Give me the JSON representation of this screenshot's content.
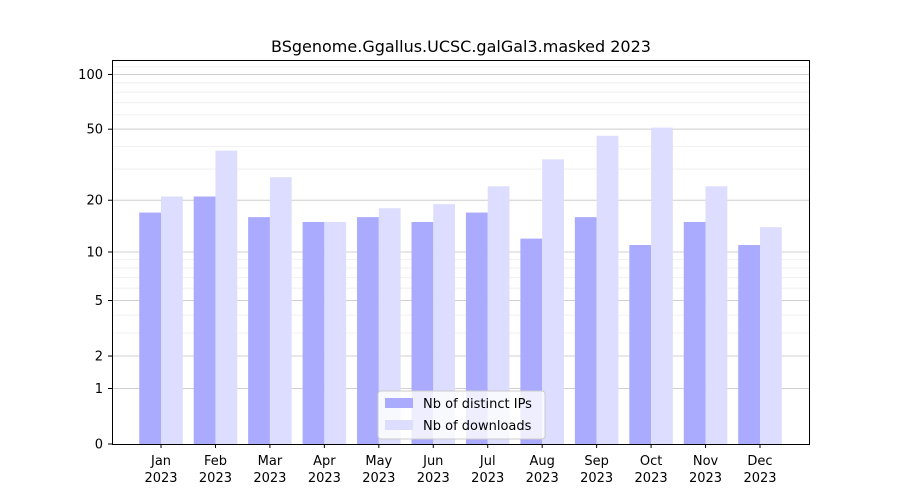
{
  "chart_data": {
    "type": "bar",
    "title": "BSgenome.Ggallus.UCSC.galGal3.masked 2023",
    "xlabel": "",
    "ylabel": "",
    "yscale": "log(1+y)",
    "ylim": [
      0,
      120
    ],
    "grid": "y-major and minor, light",
    "categories": [
      {
        "month": "Jan",
        "year": "2023"
      },
      {
        "month": "Feb",
        "year": "2023"
      },
      {
        "month": "Mar",
        "year": "2023"
      },
      {
        "month": "Apr",
        "year": "2023"
      },
      {
        "month": "May",
        "year": "2023"
      },
      {
        "month": "Jun",
        "year": "2023"
      },
      {
        "month": "Jul",
        "year": "2023"
      },
      {
        "month": "Aug",
        "year": "2023"
      },
      {
        "month": "Sep",
        "year": "2023"
      },
      {
        "month": "Oct",
        "year": "2023"
      },
      {
        "month": "Nov",
        "year": "2023"
      },
      {
        "month": "Dec",
        "year": "2023"
      }
    ],
    "series": [
      {
        "name": "Nb of distinct IPs",
        "color": "#aaaaff",
        "values": [
          17,
          21,
          16,
          15,
          16,
          15,
          17,
          12,
          16,
          11,
          15,
          11
        ]
      },
      {
        "name": "Nb of downloads",
        "color": "#ddddff",
        "values": [
          21,
          38,
          27,
          15,
          18,
          19,
          24,
          34,
          46,
          51,
          24,
          14
        ]
      }
    ],
    "yticks": [
      {
        "value": 0,
        "label": "0"
      },
      {
        "value": 1,
        "label": "1"
      },
      {
        "value": 2,
        "label": "2"
      },
      {
        "value": 5,
        "label": "5"
      },
      {
        "value": 10,
        "label": "10"
      },
      {
        "value": 20,
        "label": "20"
      },
      {
        "value": 50,
        "label": "50"
      },
      {
        "value": 100,
        "label": "100"
      }
    ],
    "legend_position": "lower center"
  }
}
